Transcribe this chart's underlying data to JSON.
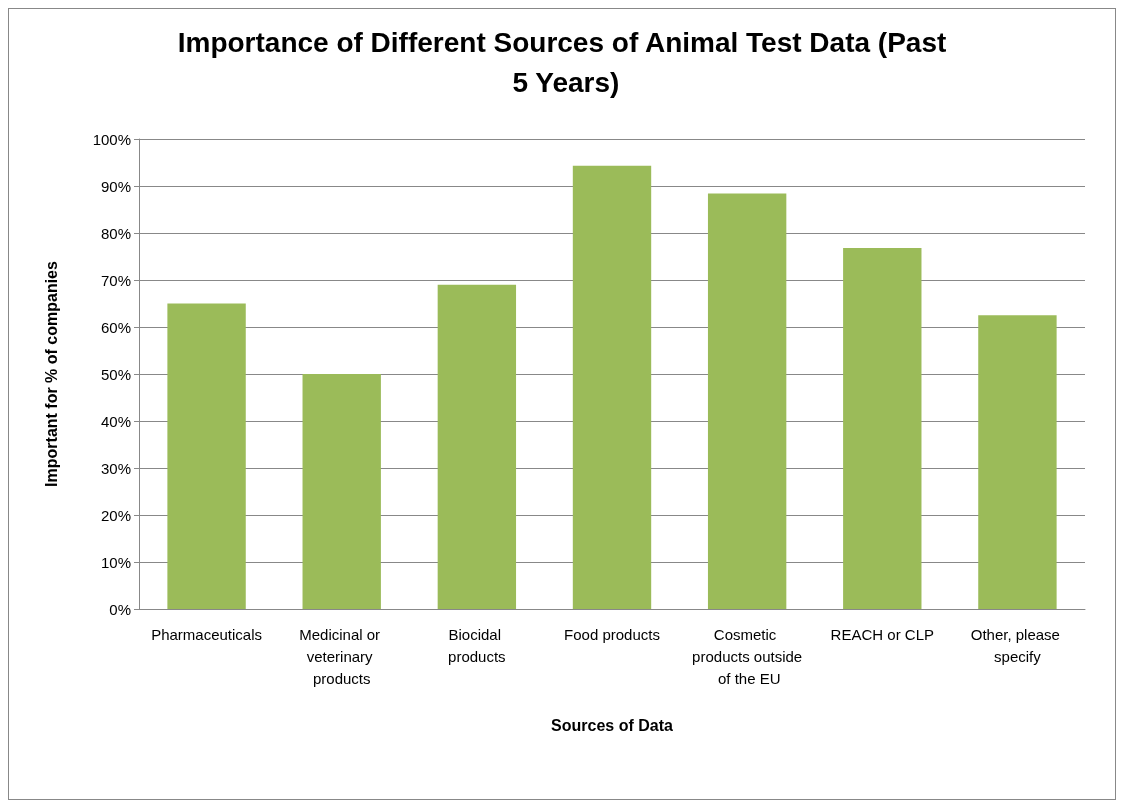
{
  "chart_data": {
    "type": "bar",
    "title": "Importance of Different Sources of Animal Test Data (Past 5 Years)",
    "xlabel": "Sources of Data",
    "ylabel": "Important for % of companies",
    "categories": [
      "Pharmaceuticals",
      "Medicinal or veterinary products",
      "Biocidal products",
      "Food products",
      "Cosmetic products outside of the EU",
      "REACH or CLP",
      "Other, please specify"
    ],
    "values": [
      65,
      50,
      69,
      94.3,
      88.4,
      76.8,
      62.5
    ],
    "color": "#9bbb59",
    "ylim": [
      0,
      100
    ],
    "yticks": [
      {
        "value": 0,
        "label": "0%"
      },
      {
        "value": 10,
        "label": "10%"
      },
      {
        "value": 20,
        "label": "20%"
      },
      {
        "value": 30,
        "label": "30%"
      },
      {
        "value": 40,
        "label": "40%"
      },
      {
        "value": 50,
        "label": "50%"
      },
      {
        "value": 60,
        "label": "60%"
      },
      {
        "value": 70,
        "label": "70%"
      },
      {
        "value": 80,
        "label": "80%"
      },
      {
        "value": 90,
        "label": "90%"
      },
      {
        "value": 100,
        "label": "100%"
      }
    ],
    "grid": "y"
  }
}
